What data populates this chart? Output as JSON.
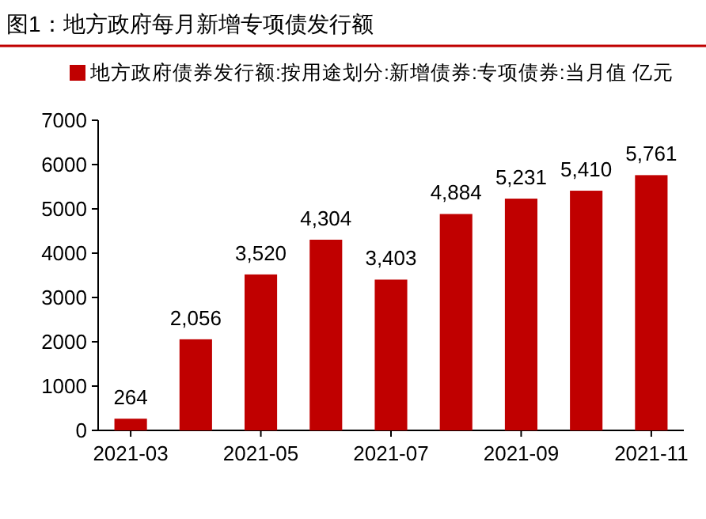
{
  "chart_data": {
    "type": "bar",
    "title": "图1：地方政府每月新增专项债发行额",
    "categories": [
      "2021-03",
      null,
      "2021-05",
      null,
      "2021-07",
      null,
      "2021-09",
      null,
      "2021-11"
    ],
    "series": [
      {
        "name": "地方政府债券发行额:按用途划分:新增债券:专项债券:当月值 亿元",
        "color": "#c00000",
        "values": [
          264,
          2056,
          3520,
          4304,
          3403,
          4884,
          5231,
          5410,
          5761
        ],
        "value_labels": [
          "264",
          "2,056",
          "3,520",
          "4,304",
          "3,403",
          "4,884",
          "5,231",
          "5,410",
          "5,761"
        ]
      }
    ],
    "ylim": [
      0,
      7000
    ],
    "yticks": [
      0,
      1000,
      2000,
      3000,
      4000,
      5000,
      6000,
      7000
    ],
    "legend": "top"
  }
}
